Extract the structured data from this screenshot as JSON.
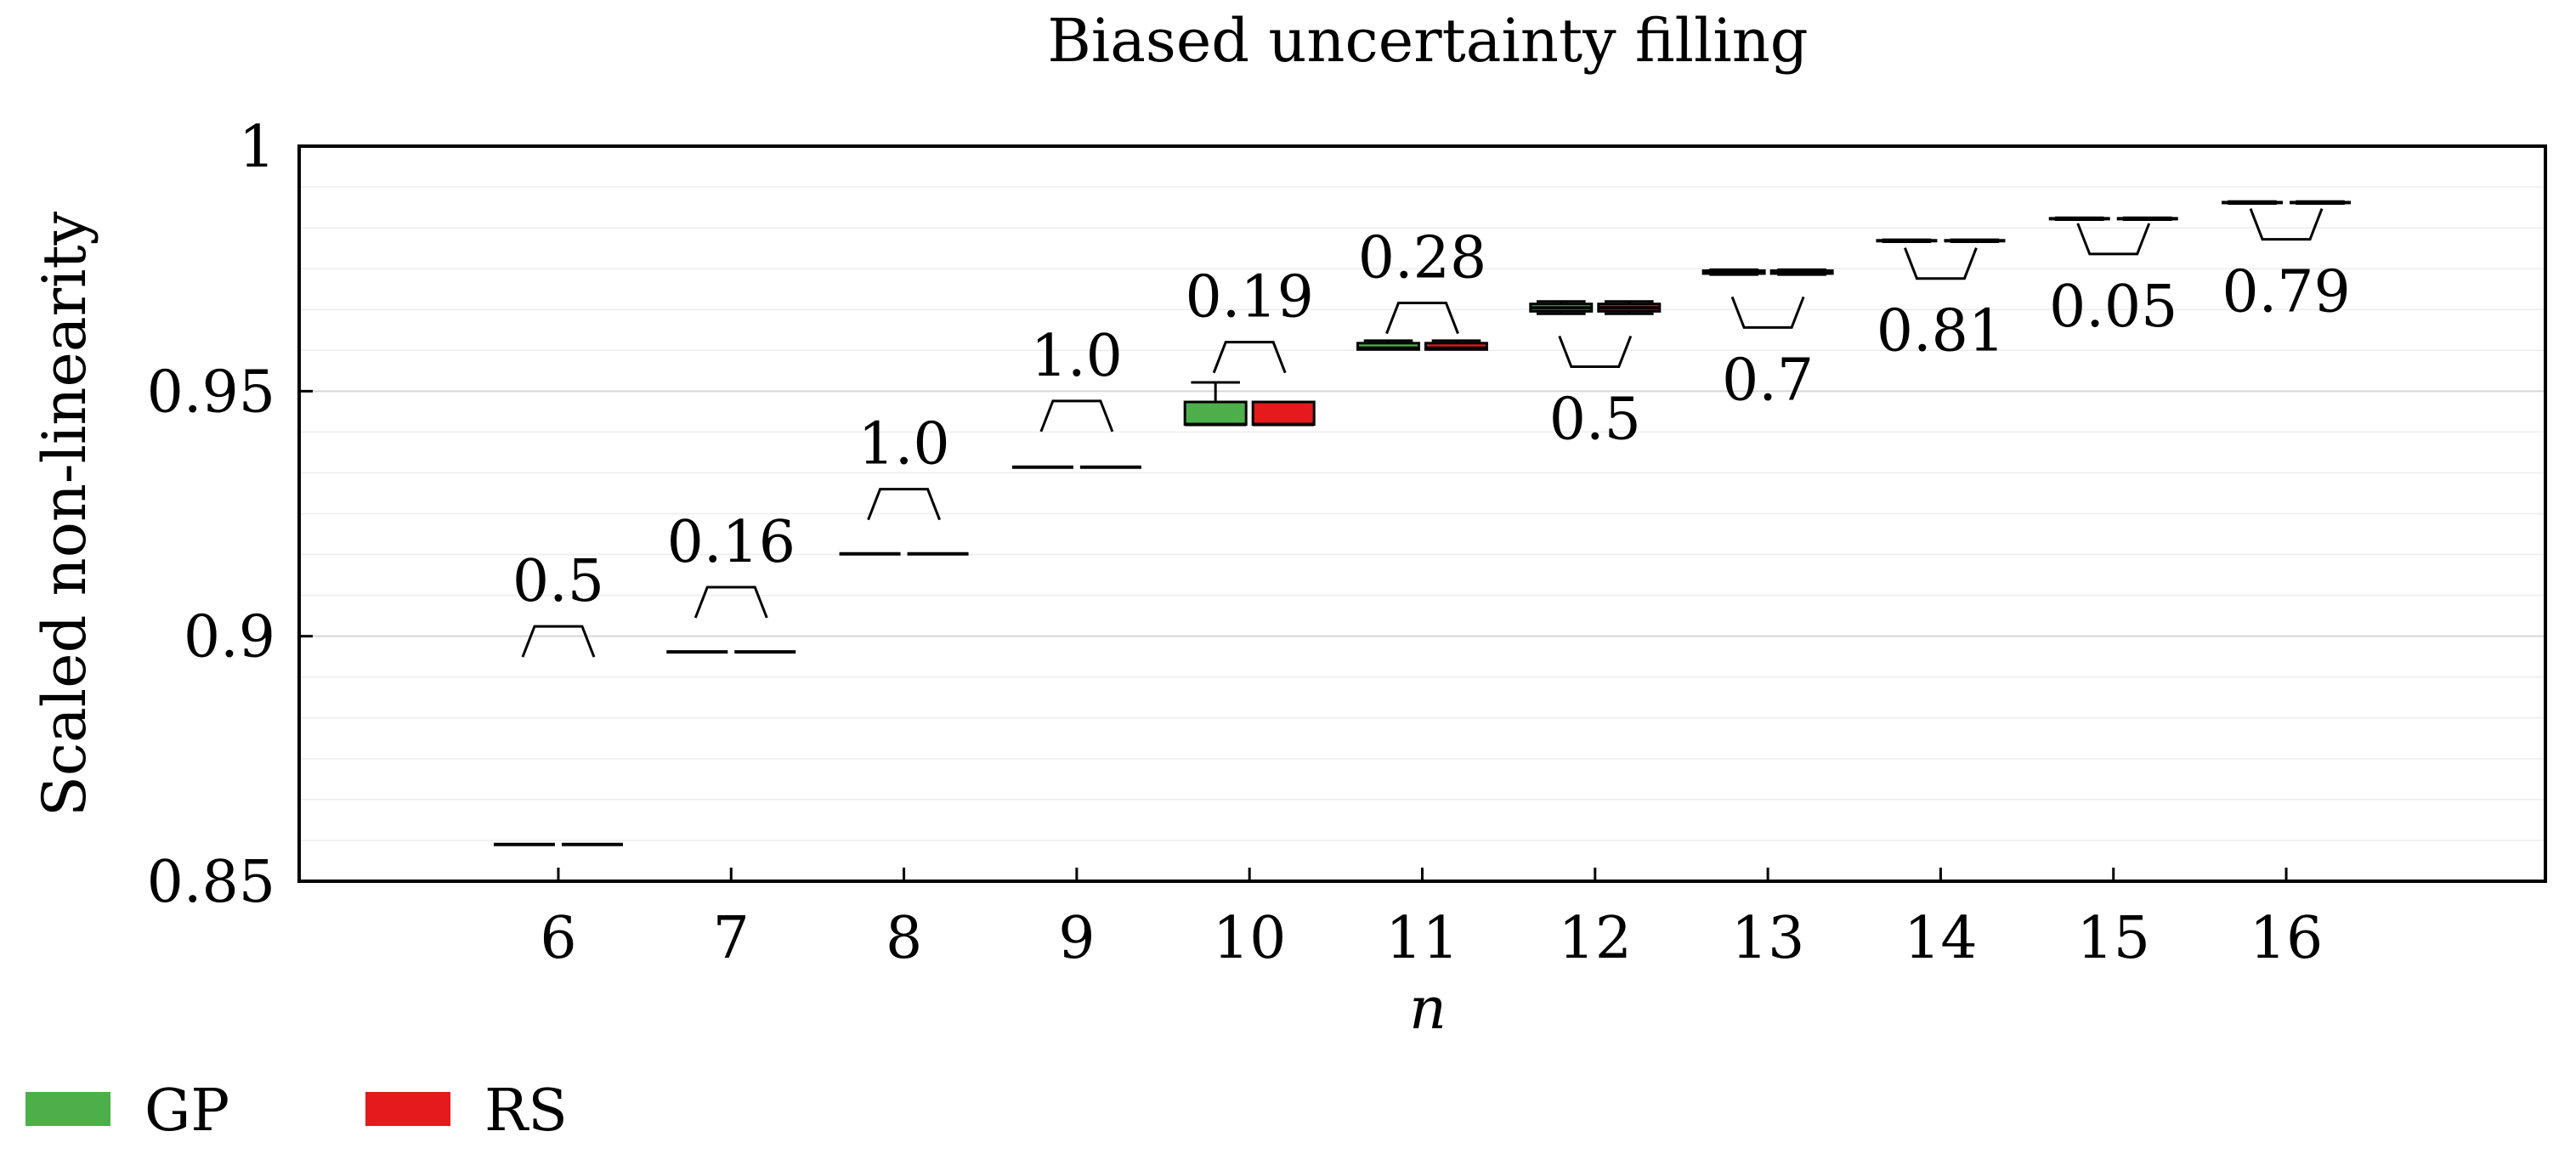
{
  "chart_data": {
    "type": "box",
    "title": "Biased uncertainty filling",
    "xlabel": "n",
    "ylabel": "Scaled non-linearity",
    "ylim": [
      0.85,
      1.0
    ],
    "yticks": [
      "0.85",
      "0.9",
      "0.95",
      "1"
    ],
    "ytick_values": [
      0.85,
      0.9,
      0.95,
      1.0
    ],
    "xlim": [
      4.5,
      17.5
    ],
    "categories": [
      "6",
      "7",
      "8",
      "9",
      "10",
      "11",
      "12",
      "13",
      "14",
      "15",
      "16"
    ],
    "series": [
      {
        "name": "GP",
        "color": "#4daf4a",
        "boxes": [
          {
            "n": 6,
            "whislo": 0.8575,
            "q1": 0.8575,
            "med": 0.8575,
            "q3": 0.8575,
            "whishi": 0.8575
          },
          {
            "n": 7,
            "whislo": 0.8968,
            "q1": 0.8968,
            "med": 0.8968,
            "q3": 0.8968,
            "whishi": 0.8968
          },
          {
            "n": 8,
            "whislo": 0.9168,
            "q1": 0.9168,
            "med": 0.9168,
            "q3": 0.9168,
            "whishi": 0.9168
          },
          {
            "n": 9,
            "whislo": 0.9345,
            "q1": 0.9345,
            "med": 0.9345,
            "q3": 0.9345,
            "whishi": 0.9345
          },
          {
            "n": 10,
            "whislo": 0.9432,
            "q1": 0.9432,
            "med": 0.9432,
            "q3": 0.9478,
            "whishi": 0.9518
          },
          {
            "n": 11,
            "whislo": 0.9585,
            "q1": 0.9585,
            "med": 0.9588,
            "q3": 0.9598,
            "whishi": 0.9603
          },
          {
            "n": 12,
            "whislo": 0.9658,
            "q1": 0.9663,
            "med": 0.967,
            "q3": 0.9678,
            "whishi": 0.9683
          },
          {
            "n": 13,
            "whislo": 0.9738,
            "q1": 0.974,
            "med": 0.9743,
            "q3": 0.9746,
            "whishi": 0.9748
          },
          {
            "n": 14,
            "whislo": 0.9805,
            "q1": 0.9806,
            "med": 0.9807,
            "q3": 0.9808,
            "whishi": 0.9809
          },
          {
            "n": 15,
            "whislo": 0.985,
            "q1": 0.9851,
            "med": 0.9852,
            "q3": 0.9853,
            "whishi": 0.9854
          },
          {
            "n": 16,
            "whislo": 0.9883,
            "q1": 0.9884,
            "med": 0.9885,
            "q3": 0.9886,
            "whishi": 0.9887
          }
        ]
      },
      {
        "name": "RS",
        "color": "#e41a1c",
        "boxes": [
          {
            "n": 6,
            "whislo": 0.8575,
            "q1": 0.8575,
            "med": 0.8575,
            "q3": 0.8575,
            "whishi": 0.8575
          },
          {
            "n": 7,
            "whislo": 0.8968,
            "q1": 0.8968,
            "med": 0.8968,
            "q3": 0.8968,
            "whishi": 0.8968
          },
          {
            "n": 8,
            "whislo": 0.9168,
            "q1": 0.9168,
            "med": 0.9168,
            "q3": 0.9168,
            "whishi": 0.9168
          },
          {
            "n": 9,
            "whislo": 0.9345,
            "q1": 0.9345,
            "med": 0.9345,
            "q3": 0.9345,
            "whishi": 0.9345
          },
          {
            "n": 10,
            "whislo": 0.9432,
            "q1": 0.9432,
            "med": 0.9432,
            "q3": 0.9478,
            "whishi": 0.9478
          },
          {
            "n": 11,
            "whislo": 0.9585,
            "q1": 0.9585,
            "med": 0.9588,
            "q3": 0.9598,
            "whishi": 0.9603
          },
          {
            "n": 12,
            "whislo": 0.9658,
            "q1": 0.9663,
            "med": 0.967,
            "q3": 0.9678,
            "whishi": 0.9683
          },
          {
            "n": 13,
            "whislo": 0.9738,
            "q1": 0.974,
            "med": 0.9743,
            "q3": 0.9746,
            "whishi": 0.9748
          },
          {
            "n": 14,
            "whislo": 0.9805,
            "q1": 0.9806,
            "med": 0.9807,
            "q3": 0.9808,
            "whishi": 0.9809
          },
          {
            "n": 15,
            "whislo": 0.985,
            "q1": 0.9851,
            "med": 0.9852,
            "q3": 0.9853,
            "whishi": 0.9854
          },
          {
            "n": 16,
            "whislo": 0.9883,
            "q1": 0.9884,
            "med": 0.9885,
            "q3": 0.9886,
            "whishi": 0.9887
          }
        ]
      }
    ],
    "annotations": [
      {
        "n": 6,
        "label": "0.5",
        "bracket": "above",
        "y": 0.902
      },
      {
        "n": 7,
        "label": "0.16",
        "bracket": "above",
        "y": 0.91
      },
      {
        "n": 8,
        "label": "1.0",
        "bracket": "above",
        "y": 0.93
      },
      {
        "n": 9,
        "label": "1.0",
        "bracket": "above",
        "y": 0.948
      },
      {
        "n": 10,
        "label": "0.19",
        "bracket": "above",
        "y": 0.96
      },
      {
        "n": 11,
        "label": "0.28",
        "bracket": "above",
        "y": 0.968
      },
      {
        "n": 12,
        "label": "0.5",
        "bracket": "below",
        "y": 0.955
      },
      {
        "n": 13,
        "label": "0.7",
        "bracket": "below",
        "y": 0.963
      },
      {
        "n": 14,
        "label": "0.81",
        "bracket": "below",
        "y": 0.973
      },
      {
        "n": 15,
        "label": "0.05",
        "bracket": "below",
        "y": 0.978
      },
      {
        "n": 16,
        "label": "0.79",
        "bracket": "below",
        "y": 0.981
      }
    ],
    "legend": {
      "position": "bottom-left",
      "entries": [
        "GP",
        "RS"
      ]
    },
    "grid": {
      "major_y": true,
      "minor_y": true
    }
  }
}
